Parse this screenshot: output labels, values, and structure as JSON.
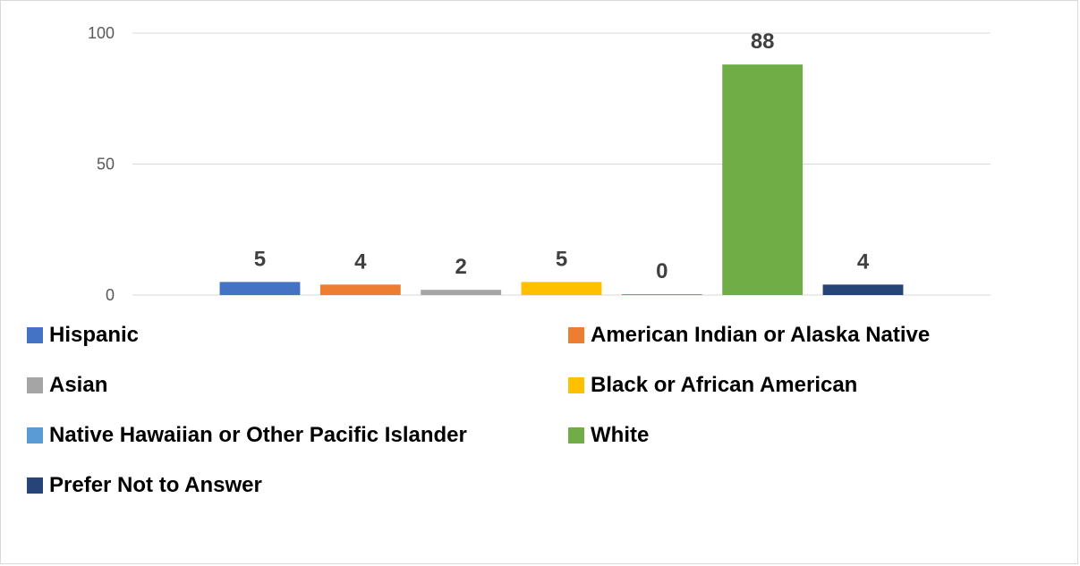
{
  "chart_data": {
    "type": "bar",
    "title": "",
    "xlabel": "",
    "ylabel": "",
    "ylim": [
      0,
      100
    ],
    "yticks": [
      0,
      50,
      100
    ],
    "grid": true,
    "legend_position": "bottom",
    "series": [
      {
        "name": "Hispanic",
        "value": 5,
        "color": "#4472C4"
      },
      {
        "name": "American Indian or Alaska Native",
        "value": 4,
        "color": "#ED7D31"
      },
      {
        "name": "Asian",
        "value": 2,
        "color": "#A5A5A5"
      },
      {
        "name": "Black or African American",
        "value": 5,
        "color": "#FFC000"
      },
      {
        "name": "Native Hawaiian or Other Pacific Islander",
        "value": 0,
        "color": "#5B9BD5"
      },
      {
        "name": "White",
        "value": 88,
        "color": "#70AD47"
      },
      {
        "name": "Prefer Not to Answer",
        "value": 4,
        "color": "#264478"
      }
    ]
  }
}
